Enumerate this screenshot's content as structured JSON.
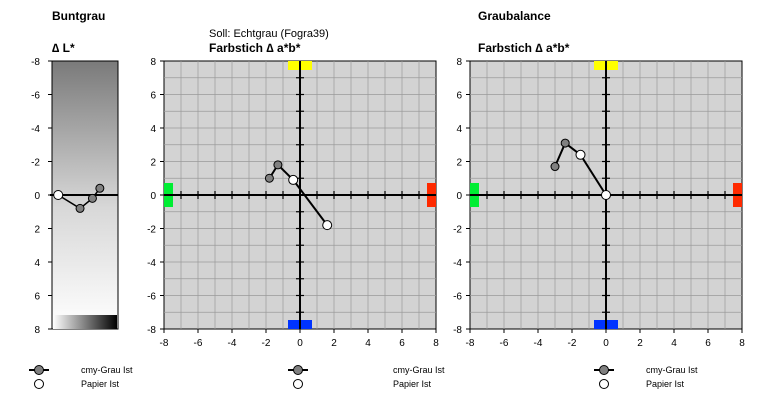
{
  "panel1": {
    "title": "Buntgrau",
    "axis_title": "∆ L*"
  },
  "panel2": {
    "subtitle": "Soll: Echtgrau (Fogra39)",
    "title": "Farbstich ∆ a*b*"
  },
  "panel3": {
    "title": "Graubalance",
    "chart_title": "Farbstich ∆ a*b*"
  },
  "legend": {
    "series1": "cmy-Grau Ist",
    "series2": "Papier Ist"
  },
  "colors": {
    "plot_bg": "#d3d3d3",
    "grid": "#9a9a9a",
    "yellow": "#ffff00",
    "red": "#ff2a00",
    "green": "#00ee33",
    "blue": "#0033ff",
    "gray_marker": "#808080"
  },
  "chart_data": [
    {
      "type": "scatter",
      "title": "∆ L*",
      "y_ticks": [
        -8,
        -6,
        -4,
        -2,
        0,
        2,
        4,
        6,
        8
      ],
      "ylim": [
        -8,
        8
      ],
      "y_reversed": true,
      "xlim": [
        -8,
        8
      ],
      "series": [
        {
          "name": "cmy-Grau Ist",
          "points": [
            [
              -1.2,
              0.8
            ],
            [
              1.8,
              0.2
            ],
            [
              3.6,
              -0.4
            ]
          ]
        },
        {
          "name": "Papier Ist",
          "points": [
            [
              -6.5,
              0.0
            ]
          ]
        }
      ]
    },
    {
      "type": "line",
      "title": "Farbstich ∆ a*b*",
      "xlim": [
        -8,
        8
      ],
      "ylim": [
        -8,
        8
      ],
      "x_ticks": [
        -8,
        -6,
        -4,
        -2,
        0,
        2,
        4,
        6,
        8
      ],
      "y_ticks": [
        -8,
        -6,
        -4,
        -2,
        0,
        2,
        4,
        6,
        8
      ],
      "grid": true,
      "series": [
        {
          "name": "cmy-Grau Ist",
          "points": [
            [
              -1.8,
              1.0
            ],
            [
              -1.3,
              1.8
            ],
            [
              -0.4,
              0.9
            ]
          ]
        },
        {
          "name": "Papier Ist",
          "points": [
            [
              -0.4,
              0.9
            ],
            [
              1.6,
              -1.8
            ]
          ]
        }
      ]
    },
    {
      "type": "line",
      "title": "Farbstich ∆ a*b*",
      "xlim": [
        -8,
        8
      ],
      "ylim": [
        -8,
        8
      ],
      "x_ticks": [
        -8,
        -6,
        -4,
        -2,
        0,
        2,
        4,
        6,
        8
      ],
      "y_ticks": [
        -8,
        -6,
        -4,
        -2,
        0,
        2,
        4,
        6,
        8
      ],
      "grid": true,
      "series": [
        {
          "name": "cmy-Grau Ist",
          "points": [
            [
              -3.0,
              1.7
            ],
            [
              -2.4,
              3.1
            ],
            [
              -1.5,
              2.4
            ]
          ]
        },
        {
          "name": "Papier Ist",
          "points": [
            [
              -1.5,
              2.4
            ],
            [
              0.0,
              0.0
            ]
          ]
        }
      ]
    }
  ]
}
